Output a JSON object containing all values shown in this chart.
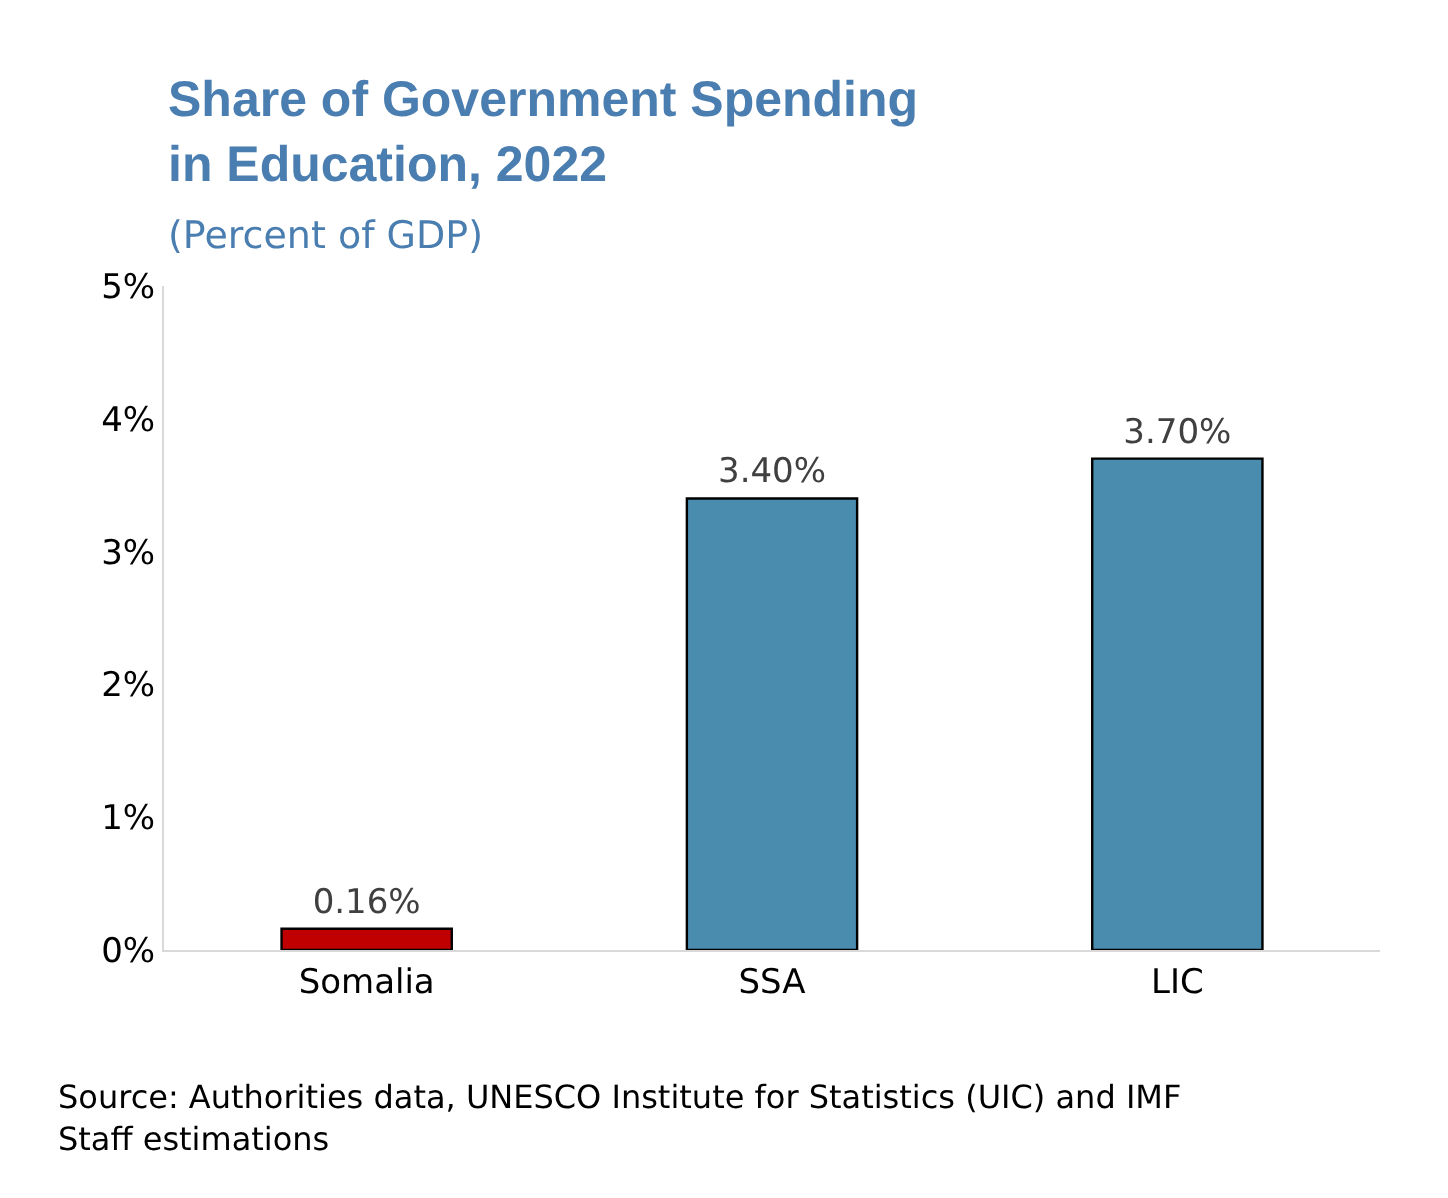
{
  "chart_data": {
    "type": "bar",
    "title": "Share of Government Spending in Education, 2022",
    "subtitle": "(Percent of GDP)",
    "categories": [
      "Somalia",
      "SSA",
      "LIC"
    ],
    "values": [
      0.16,
      3.4,
      3.7
    ],
    "colors": [
      "#c00000",
      "#4a8cae",
      "#4a8cae"
    ],
    "value_labels": [
      "0.16%",
      "3.40%",
      "3.70%"
    ],
    "ylim": [
      0,
      5
    ],
    "yticks": [
      {
        "value": 0,
        "label": "0%"
      },
      {
        "value": 1,
        "label": "1%"
      },
      {
        "value": 2,
        "label": "2%"
      },
      {
        "value": 3,
        "label": "3%"
      },
      {
        "value": 4,
        "label": "4%"
      },
      {
        "value": 5,
        "label": "5%"
      }
    ],
    "legend": false,
    "annotations": [
      "Source: Authorities data, UNESCO Institute for Statistics (UIC) and IMF Staff estimations"
    ]
  }
}
